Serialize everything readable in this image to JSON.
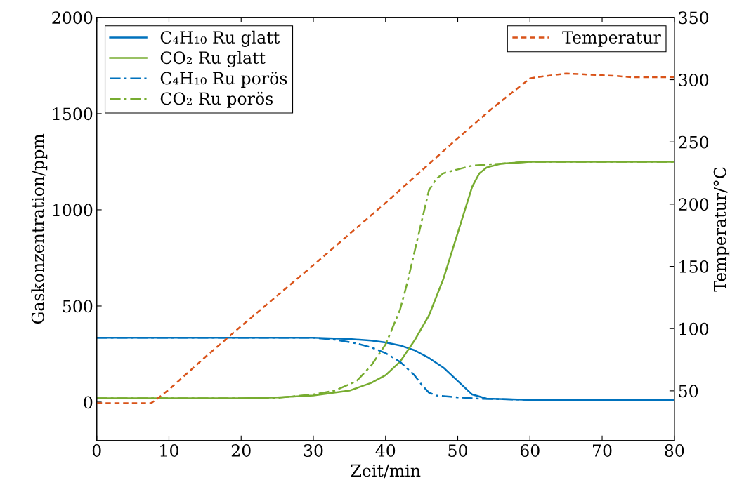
{
  "chart_data": {
    "type": "line",
    "xlabel": "Zeit/min",
    "ylabel": "Gaskonzentration/ppm",
    "y2label": "Temperatur/°C",
    "xlim": [
      0,
      80
    ],
    "xticks": [
      0,
      10,
      20,
      30,
      40,
      50,
      60,
      70,
      80
    ],
    "ylim": [
      -200,
      2000
    ],
    "yticks": [
      0,
      500,
      1000,
      1500,
      2000
    ],
    "y2lim": [
      10,
      350
    ],
    "y2ticks": [
      50,
      100,
      150,
      200,
      250,
      300,
      350
    ],
    "legend": "top left",
    "grid": false,
    "marker": "none",
    "series": [
      {
        "name": "C₄H₁₀ Ru glatt",
        "color": "#0072bd",
        "line_style": "solid",
        "x": [
          0,
          10,
          20,
          30,
          35,
          38,
          40,
          42,
          44,
          46,
          48,
          50,
          52,
          54,
          60,
          70,
          80
        ],
        "values": [
          335,
          335,
          335,
          335,
          328,
          320,
          310,
          295,
          270,
          230,
          180,
          110,
          40,
          18,
          12,
          10,
          10
        ]
      },
      {
        "name": "CO₂ Ru glatt",
        "color": "#77ac30",
        "line_style": "solid",
        "x": [
          0,
          10,
          20,
          25,
          30,
          35,
          38,
          40,
          42,
          44,
          46,
          48,
          50,
          51,
          52,
          53,
          54,
          56,
          60,
          70,
          80
        ],
        "values": [
          20,
          20,
          20,
          25,
          35,
          60,
          100,
          140,
          210,
          320,
          450,
          640,
          880,
          1000,
          1120,
          1190,
          1220,
          1240,
          1250,
          1250,
          1250
        ]
      },
      {
        "name": "C₄H₁₀ Ru porös",
        "color": "#0072bd",
        "line_style": "dashdot",
        "x": [
          0,
          10,
          20,
          30,
          33,
          36,
          38,
          40,
          42,
          44,
          45,
          46,
          47,
          50,
          53,
          60,
          70,
          80
        ],
        "values": [
          335,
          335,
          335,
          335,
          325,
          305,
          285,
          255,
          210,
          140,
          90,
          50,
          35,
          25,
          18,
          12,
          10,
          10
        ]
      },
      {
        "name": "CO₂ Ru porös",
        "color": "#77ac30",
        "line_style": "dashdot",
        "x": [
          0,
          10,
          20,
          25,
          30,
          33,
          36,
          38,
          40,
          42,
          43,
          44,
          45,
          46,
          47,
          48,
          50,
          52,
          56,
          60,
          70,
          80
        ],
        "values": [
          20,
          20,
          20,
          22,
          40,
          60,
          110,
          190,
          300,
          480,
          620,
          780,
          940,
          1100,
          1160,
          1190,
          1210,
          1230,
          1240,
          1250,
          1250,
          1250
        ]
      },
      {
        "name": "Temperatur",
        "color": "#d95319",
        "line_style": "dashed",
        "axis": "y2",
        "x": [
          0,
          7.5,
          8,
          10,
          15,
          20,
          30,
          40,
          50,
          55,
          60,
          61,
          65,
          72,
          74,
          80
        ],
        "values": [
          40,
          40,
          42,
          51,
          77,
          102,
          151,
          201,
          253,
          278,
          301,
          302,
          305,
          303,
          302,
          302
        ]
      }
    ]
  }
}
